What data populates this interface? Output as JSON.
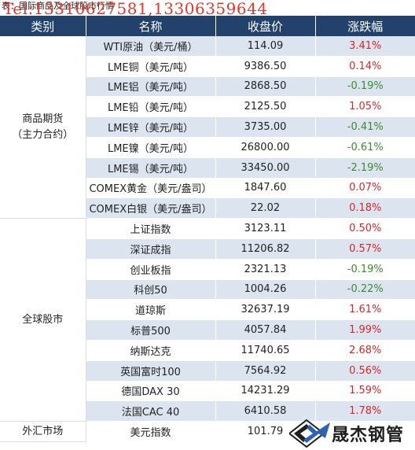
{
  "caption": "表：国际商品及全球股市行情",
  "watermark": "Tel:13310627581,13306359644",
  "header": {
    "category": "类别",
    "name": "名称",
    "close": "收盘价",
    "change": "涨跌幅"
  },
  "groups": [
    {
      "label": "商品期货\n（主力合约）",
      "rows": [
        {
          "name": "WTI原油（美元/桶）",
          "close": "114.09",
          "change": "3.41%",
          "dir": "up"
        },
        {
          "name": "LME铜（美元/吨）",
          "close": "9386.50",
          "change": "0.14%",
          "dir": "up"
        },
        {
          "name": "LME铝（美元/吨）",
          "close": "2868.50",
          "change": "-0.19%",
          "dir": "down"
        },
        {
          "name": "LME铅（美元/吨）",
          "close": "2125.50",
          "change": "1.05%",
          "dir": "up"
        },
        {
          "name": "LME锌（美元/吨）",
          "close": "3735.00",
          "change": "-0.41%",
          "dir": "down"
        },
        {
          "name": "LME镍（美元/吨）",
          "close": "26800.00",
          "change": "-0.61%",
          "dir": "down"
        },
        {
          "name": "LME锡（美元/吨）",
          "close": "33450.00",
          "change": "-2.19%",
          "dir": "down"
        },
        {
          "name": "COMEX黄金（美元/盎司）",
          "close": "1847.60",
          "change": "0.07%",
          "dir": "up"
        },
        {
          "name": "COMEX白银（美元/盎司）",
          "close": "22.02",
          "change": "0.18%",
          "dir": "up"
        }
      ]
    },
    {
      "label": "全球股市",
      "rows": [
        {
          "name": "上证指数",
          "close": "3123.11",
          "change": "0.50%",
          "dir": "up"
        },
        {
          "name": "深证成指",
          "close": "11206.82",
          "change": "0.57%",
          "dir": "up"
        },
        {
          "name": "创业板指",
          "close": "2321.13",
          "change": "-0.19%",
          "dir": "down"
        },
        {
          "name": "科创50",
          "close": "1004.26",
          "change": "-0.22%",
          "dir": "down"
        },
        {
          "name": "道琼斯",
          "close": "32637.19",
          "change": "1.61%",
          "dir": "up"
        },
        {
          "name": "标普500",
          "close": "4057.84",
          "change": "1.99%",
          "dir": "up"
        },
        {
          "name": "纳斯达克",
          "close": "11740.65",
          "change": "2.68%",
          "dir": "up"
        },
        {
          "name": "英国富时100",
          "close": "7564.92",
          "change": "0.56%",
          "dir": "up"
        },
        {
          "name": "德国DAX 30",
          "close": "14231.29",
          "change": "1.59%",
          "dir": "up"
        },
        {
          "name": "法国CAC 40",
          "close": "6410.58",
          "change": "1.78%",
          "dir": "up"
        }
      ]
    },
    {
      "label": "外汇市场",
      "rows": [
        {
          "name": "美元指数",
          "close": "101.79",
          "change": "",
          "dir": ""
        }
      ]
    }
  ],
  "logo": {
    "text": "晟杰钢管",
    "icon": "diamond-arrows-logo-icon"
  },
  "colors": {
    "header_bg": "#22426c",
    "stripe": "#dce4f0",
    "up": "#d5282a",
    "down": "#3d8a2e",
    "watermark": "#e2372c"
  }
}
